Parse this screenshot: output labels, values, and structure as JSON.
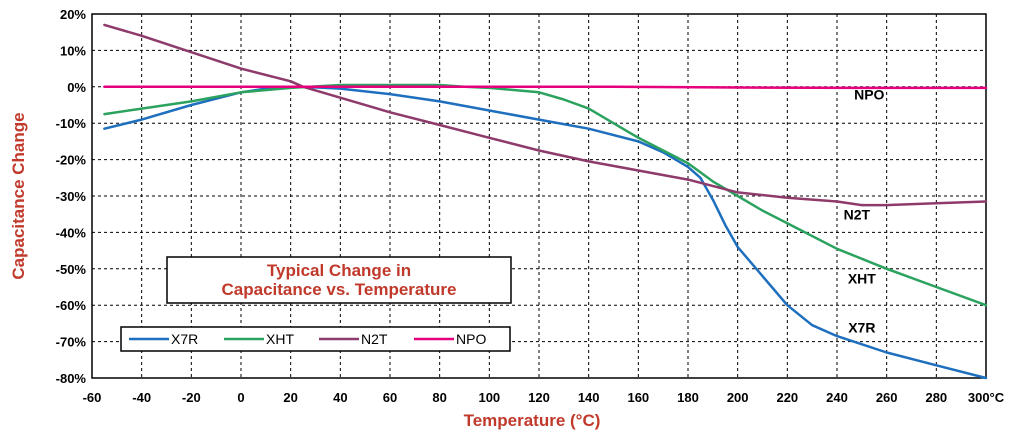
{
  "chart_data": {
    "type": "line",
    "title": "Typical Change in\nCapacitance vs. Temperature",
    "title_lines": [
      "Typical Change in",
      "Capacitance vs. Temperature"
    ],
    "xlabel": "Temperature (°C)",
    "ylabel": "Capacitance Change",
    "xlim": [
      -60,
      300
    ],
    "ylim": [
      -80,
      20
    ],
    "x_ticks": [
      -60,
      -40,
      -20,
      0,
      20,
      40,
      60,
      80,
      100,
      120,
      140,
      160,
      180,
      200,
      220,
      240,
      260,
      280,
      300
    ],
    "x_tick_labels": [
      "-60",
      "-40",
      "-20",
      "0",
      "20",
      "40",
      "60",
      "80",
      "100",
      "120",
      "140",
      "160",
      "180",
      "200",
      "220",
      "240",
      "260",
      "280",
      "300°C"
    ],
    "y_ticks": [
      20,
      10,
      0,
      -10,
      -20,
      -30,
      -40,
      -50,
      -60,
      -70,
      -80
    ],
    "y_tick_labels": [
      "20%",
      "10%",
      "0%",
      "-10%",
      "-20%",
      "-30%",
      "-40%",
      "-50%",
      "-60%",
      "-70%",
      "-80%"
    ],
    "grid": true,
    "legend_placement": "bottom-left",
    "colors": {
      "axis_title": "#c0392b",
      "X7R": "#1f6fbf",
      "XHT": "#2ca25f",
      "N2T": "#8e3b6b",
      "NPO": "#e6007e"
    },
    "series": [
      {
        "name": "X7R",
        "color": "#1f6fbf",
        "end_label": "X7R",
        "x": [
          -55,
          -40,
          -20,
          0,
          10,
          20,
          25,
          40,
          60,
          80,
          100,
          120,
          140,
          160,
          170,
          180,
          185,
          190,
          195,
          200,
          210,
          220,
          230,
          240,
          260,
          280,
          300
        ],
        "y": [
          -11.5,
          -9,
          -5,
          -1.5,
          -0.5,
          0,
          0,
          -0.5,
          -2,
          -4,
          -6.5,
          -9,
          -11.5,
          -15,
          -18,
          -22,
          -25,
          -31,
          -38,
          -44,
          -52,
          -60,
          -65.5,
          -68.5,
          -73,
          -76.5,
          -80
        ]
      },
      {
        "name": "XHT",
        "color": "#2ca25f",
        "end_label": "XHT",
        "x": [
          -55,
          -40,
          -20,
          0,
          20,
          40,
          50,
          60,
          80,
          90,
          100,
          120,
          130,
          140,
          150,
          160,
          170,
          180,
          190,
          200,
          210,
          220,
          240,
          260,
          280,
          300
        ],
        "y": [
          -7.5,
          -6,
          -4,
          -1.5,
          -0.3,
          0.5,
          0.5,
          0.5,
          0.5,
          0,
          -0.3,
          -1.5,
          -3.5,
          -6,
          -10,
          -14,
          -17.5,
          -21,
          -26,
          -30,
          -34,
          -37.5,
          -44.5,
          -50,
          -55,
          -60
        ]
      },
      {
        "name": "N2T",
        "color": "#8e3b6b",
        "end_label": "N2T",
        "x": [
          -55,
          -40,
          -20,
          0,
          20,
          25,
          40,
          60,
          80,
          100,
          120,
          140,
          160,
          180,
          200,
          220,
          240,
          250,
          260,
          280,
          300
        ],
        "y": [
          17,
          14,
          9.5,
          5,
          1.5,
          0,
          -3,
          -7,
          -10.5,
          -14,
          -17.5,
          -20.5,
          -23,
          -25.5,
          -29,
          -30.5,
          -31.5,
          -32.5,
          -32.5,
          -32,
          -31.5
        ]
      },
      {
        "name": "NPO",
        "color": "#e6007e",
        "end_label": "NPO",
        "x": [
          -55,
          0,
          50,
          100,
          150,
          200,
          250,
          300
        ],
        "y": [
          0,
          0,
          0,
          0,
          0,
          -0.2,
          -0.3,
          -0.3
        ]
      }
    ]
  }
}
